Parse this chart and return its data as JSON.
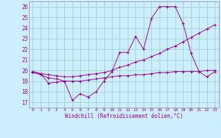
{
  "line1_x": [
    0,
    1,
    2,
    3,
    4,
    5,
    6,
    7,
    8,
    9,
    10,
    11,
    12,
    13,
    14,
    15,
    16,
    17,
    18,
    19,
    20,
    21,
    22,
    23
  ],
  "line1_y": [
    19.9,
    19.7,
    18.8,
    18.9,
    19.0,
    17.2,
    17.8,
    17.5,
    18.0,
    19.0,
    19.9,
    21.7,
    21.7,
    23.2,
    22.0,
    24.9,
    26.0,
    26.0,
    26.0,
    24.4,
    21.6,
    19.9,
    19.4,
    19.9
  ],
  "line2_x": [
    0,
    1,
    2,
    3,
    4,
    5,
    6,
    7,
    8,
    9,
    10,
    11,
    12,
    13,
    14,
    15,
    16,
    17,
    18,
    19,
    20,
    21,
    22,
    23
  ],
  "line2_y": [
    19.9,
    19.7,
    19.6,
    19.5,
    19.4,
    19.4,
    19.5,
    19.6,
    19.7,
    19.8,
    20.0,
    20.3,
    20.5,
    20.8,
    21.0,
    21.3,
    21.6,
    22.0,
    22.3,
    22.7,
    23.1,
    23.5,
    23.9,
    24.3
  ],
  "line3_x": [
    0,
    1,
    2,
    3,
    4,
    5,
    6,
    7,
    8,
    9,
    10,
    11,
    12,
    13,
    14,
    15,
    16,
    17,
    18,
    19,
    20,
    21,
    22,
    23
  ],
  "line3_y": [
    19.8,
    19.6,
    19.3,
    19.2,
    19.0,
    19.0,
    19.0,
    19.1,
    19.2,
    19.3,
    19.4,
    19.5,
    19.5,
    19.6,
    19.6,
    19.7,
    19.8,
    19.8,
    19.9,
    19.9,
    19.9,
    19.9,
    20.0,
    20.0
  ],
  "color": "#990099",
  "bg_color": "#cceeff",
  "grid_color": "#99ccbb",
  "ylabel_vals": [
    17,
    18,
    19,
    20,
    21,
    22,
    23,
    24,
    25,
    26
  ],
  "xlabel_vals": [
    0,
    1,
    2,
    3,
    4,
    5,
    6,
    7,
    8,
    9,
    10,
    11,
    12,
    13,
    14,
    15,
    16,
    17,
    18,
    19,
    20,
    21,
    22,
    23
  ],
  "xlabel": "Windchill (Refroidissement éolien,°C)",
  "ylim": [
    16.5,
    26.5
  ],
  "xlim": [
    -0.5,
    23.5
  ]
}
